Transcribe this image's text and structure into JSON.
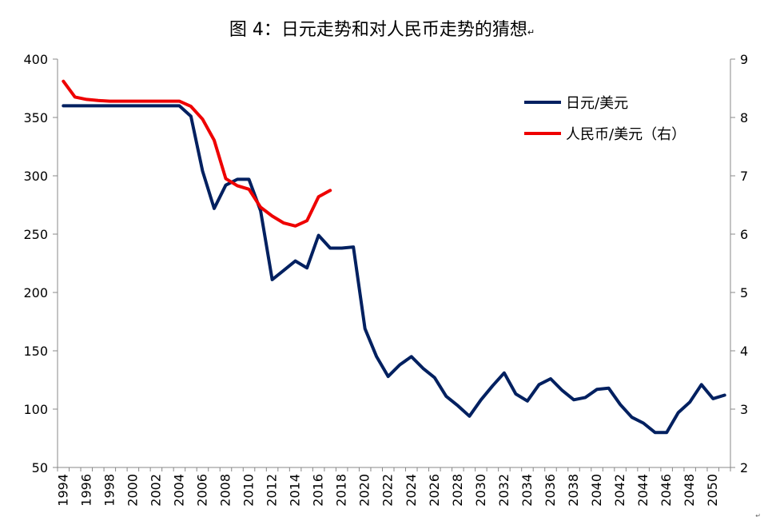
{
  "chart_data": {
    "type": "line",
    "title": "图 4：日元走势和对人民币走势的猜想",
    "title_end_mark": "↵",
    "corner_mark": "↵",
    "xlabel": "",
    "ylabel": "",
    "x_start": 1994,
    "x_end": 2051,
    "x_tick_labels": [
      "1994",
      "1996",
      "1998",
      "2000",
      "2002",
      "2004",
      "2006",
      "2008",
      "2010",
      "2012",
      "2014",
      "2016",
      "2018",
      "2020",
      "2022",
      "2024",
      "2026",
      "2028",
      "2030",
      "2032",
      "2034",
      "2036",
      "2038",
      "2040",
      "2042",
      "2044",
      "2046",
      "2048",
      "2050"
    ],
    "y_left": {
      "min": 50,
      "max": 400,
      "ticks": [
        50,
        100,
        150,
        200,
        250,
        300,
        350,
        400
      ]
    },
    "y_right": {
      "min": 2,
      "max": 9,
      "ticks": [
        2,
        3,
        4,
        5,
        6,
        7,
        8,
        9
      ]
    },
    "grid": false,
    "legend_position": "top-right",
    "series": [
      {
        "name": "日元/美元",
        "axis": "left",
        "color": "#002060",
        "x": [
          1994,
          1995,
          1996,
          1997,
          1998,
          1999,
          2000,
          2001,
          2002,
          2003,
          2004,
          2005,
          2006,
          2007,
          2008,
          2009,
          2010,
          2011,
          2012,
          2013,
          2014,
          2015,
          2016,
          2017,
          2018,
          2019,
          2020,
          2021,
          2022,
          2023,
          2024,
          2025,
          2026,
          2027,
          2028,
          2029,
          2030,
          2031,
          2032,
          2033,
          2034,
          2035,
          2036,
          2037,
          2038,
          2039,
          2040,
          2041,
          2042,
          2043,
          2044,
          2045,
          2046,
          2047,
          2048,
          2049,
          2050,
          2051
        ],
        "values": [
          360,
          360,
          360,
          360,
          360,
          360,
          360,
          360,
          360,
          360,
          360,
          351,
          304,
          272,
          292,
          297,
          297,
          270,
          211,
          219,
          227,
          221,
          249,
          238,
          238,
          239,
          169,
          145,
          128,
          138,
          145,
          135,
          127,
          111,
          103,
          94,
          108,
          120,
          131,
          113,
          107,
          121,
          126,
          116,
          108,
          110,
          117,
          118,
          104,
          93,
          88,
          80,
          80,
          97,
          106,
          121,
          109,
          112
        ]
      },
      {
        "name": "人民币/美元（右）",
        "axis": "right",
        "color": "#ee0000",
        "x": [
          1994,
          1995,
          1996,
          1997,
          1998,
          1999,
          2000,
          2001,
          2002,
          2003,
          2004,
          2005,
          2006,
          2007,
          2008,
          2009,
          2010,
          2011,
          2012,
          2013,
          2014,
          2015,
          2016,
          2017
        ],
        "values": [
          8.62,
          8.35,
          8.31,
          8.29,
          8.28,
          8.28,
          8.28,
          8.28,
          8.28,
          8.28,
          8.28,
          8.19,
          7.97,
          7.61,
          6.95,
          6.83,
          6.77,
          6.46,
          6.31,
          6.19,
          6.14,
          6.23,
          6.64,
          6.75
        ]
      }
    ]
  }
}
